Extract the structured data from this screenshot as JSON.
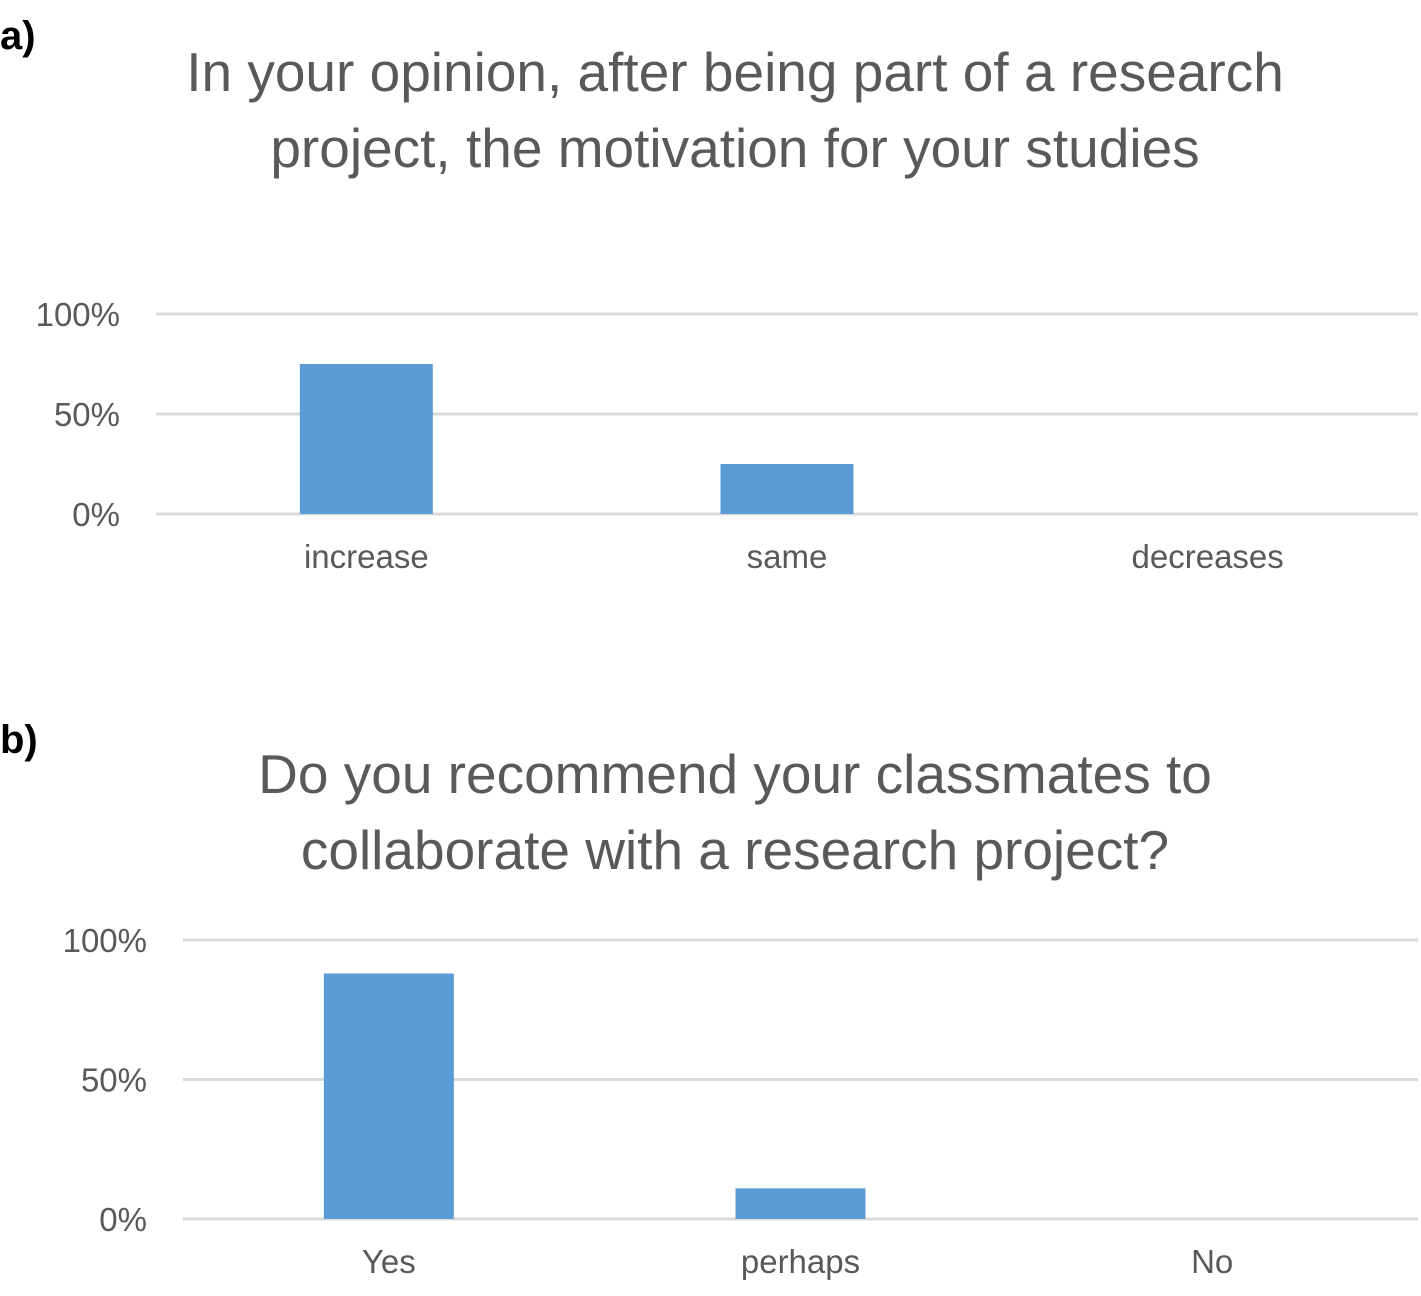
{
  "chart_data": [
    {
      "panel_label": "a)",
      "type": "bar",
      "title": "In your opinion, after being part of a research project, the motivation for your studies",
      "categories": [
        "increase",
        "same",
        "decreases"
      ],
      "values": [
        75,
        25,
        0
      ],
      "ylim": [
        0,
        100
      ],
      "yticks": [
        "0%",
        "50%",
        "100%"
      ],
      "ytick_values": [
        0,
        50,
        100
      ],
      "grid": true,
      "legend": "none",
      "bar_color": "#5B9BD5",
      "grid_color": "#D9D9D9"
    },
    {
      "panel_label": "b)",
      "type": "bar",
      "title": "Do you recommend your classmates to collaborate with a research project?",
      "categories": [
        "Yes",
        "perhaps",
        "No"
      ],
      "values": [
        88,
        11,
        0
      ],
      "ylim": [
        0,
        100
      ],
      "yticks": [
        "0%",
        "50%",
        "100%"
      ],
      "ytick_values": [
        0,
        50,
        100
      ],
      "grid": true,
      "legend": "none",
      "bar_color": "#5B9BD5",
      "grid_color": "#D9D9D9"
    }
  ]
}
